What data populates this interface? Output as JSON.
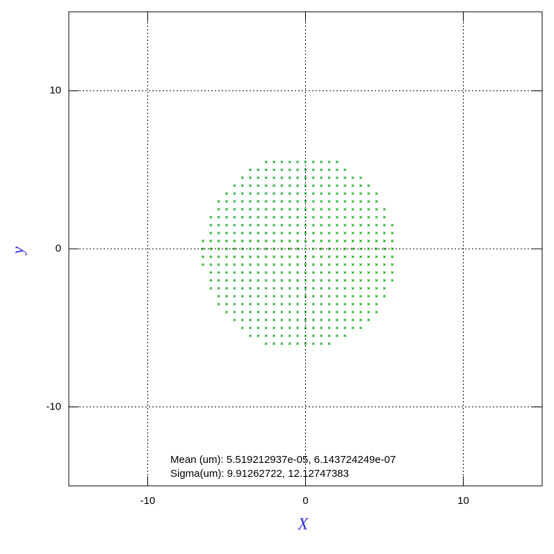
{
  "chart_data": {
    "type": "scatter",
    "xlabel": "X",
    "ylabel": "y",
    "xlim": [
      -15,
      15
    ],
    "ylim": [
      -15,
      15
    ],
    "xticks": [
      -10,
      0,
      10
    ],
    "yticks": [
      -10,
      0,
      10
    ],
    "grid": true,
    "color": "#00a000",
    "annotations": [
      "Mean (um): 5.519212937e-05, 6.143724249e-07",
      "Sigma(um): 9.91262722, 12.12747383"
    ],
    "rows": [
      {
        "y": 5.5,
        "x": [
          -2.5,
          -2,
          -1.5,
          -1,
          -0.5,
          0,
          0.5,
          1,
          1.5,
          2
        ]
      },
      {
        "y": 5,
        "x": [
          -3.5,
          -3,
          -2.5,
          -2,
          -1.5,
          -1,
          -0.5,
          0,
          0.5,
          1,
          1.5,
          2,
          2.5
        ]
      },
      {
        "y": 4.5,
        "x": [
          -4,
          -3.5,
          -3,
          -2.5,
          -2,
          -1.5,
          -1,
          -0.5,
          0,
          0.5,
          1,
          1.5,
          2,
          2.5,
          3,
          3.5
        ]
      },
      {
        "y": 4,
        "x": [
          -4.5,
          -4,
          -3.5,
          -3,
          -2.5,
          -2,
          -1.5,
          -1,
          -0.5,
          0,
          0.5,
          1,
          1.5,
          2,
          2.5,
          3,
          3.5,
          4
        ]
      },
      {
        "y": 3.5,
        "x": [
          -5,
          -4.5,
          -4,
          -3.5,
          -3,
          -2.5,
          -2,
          -1.5,
          -1,
          -0.5,
          0,
          0.5,
          1,
          1.5,
          2,
          2.5,
          3,
          3.5,
          4,
          4.5
        ]
      },
      {
        "y": 3,
        "x": [
          -5.5,
          -5,
          -4.5,
          -4,
          -3.5,
          -3,
          -2.5,
          -2,
          -1.5,
          -1,
          -0.5,
          0,
          0.5,
          1,
          1.5,
          2,
          2.5,
          3,
          3.5,
          4,
          4.5
        ]
      },
      {
        "y": 2.5,
        "x": [
          -5.5,
          -5,
          -4.5,
          -4,
          -3.5,
          -3,
          -2.5,
          -2,
          -1.5,
          -1,
          -0.5,
          0,
          0.5,
          1,
          1.5,
          2,
          2.5,
          3,
          3.5,
          4,
          4.5,
          5
        ]
      },
      {
        "y": 2,
        "x": [
          -6,
          -5.5,
          -5,
          -4.5,
          -4,
          -3.5,
          -3,
          -2.5,
          -2,
          -1.5,
          -1,
          -0.5,
          0,
          0.5,
          1,
          1.5,
          2,
          2.5,
          3,
          3.5,
          4,
          4.5,
          5
        ]
      },
      {
        "y": 1.5,
        "x": [
          -6,
          -5.5,
          -5,
          -4.5,
          -4,
          -3.5,
          -3,
          -2.5,
          -2,
          -1.5,
          -1,
          -0.5,
          0,
          0.5,
          1,
          1.5,
          2,
          2.5,
          3,
          3.5,
          4,
          4.5,
          5,
          5.5
        ]
      },
      {
        "y": 1,
        "x": [
          -6,
          -5.5,
          -5,
          -4.5,
          -4,
          -3.5,
          -3,
          -2.5,
          -2,
          -1.5,
          -1,
          -0.5,
          0,
          0.5,
          1,
          1.5,
          2,
          2.5,
          3,
          3.5,
          4,
          4.5,
          5,
          5.5
        ]
      },
      {
        "y": 0.5,
        "x": [
          -6.5,
          -6,
          -5.5,
          -5,
          -4.5,
          -4,
          -3.5,
          -3,
          -2.5,
          -2,
          -1.5,
          -1,
          -0.5,
          0,
          0.5,
          1,
          1.5,
          2,
          2.5,
          3,
          3.5,
          4,
          4.5,
          5,
          5.5
        ]
      },
      {
        "y": 0,
        "x": [
          -6.5,
          -6,
          -5.5,
          -5,
          -4.5,
          -4,
          -3.5,
          -3,
          -2.5,
          -2,
          -1.5,
          -1,
          -0.5,
          0,
          0.5,
          1,
          1.5,
          2,
          2.5,
          3,
          3.5,
          4,
          4.5,
          5,
          5.5
        ]
      },
      {
        "y": -0.5,
        "x": [
          -6.5,
          -6,
          -5.5,
          -5,
          -4.5,
          -4,
          -3.5,
          -3,
          -2.5,
          -2,
          -1.5,
          -1,
          -0.5,
          0,
          0.5,
          1,
          1.5,
          2,
          2.5,
          3,
          3.5,
          4,
          4.5,
          5,
          5.5
        ]
      },
      {
        "y": -1,
        "x": [
          -6.5,
          -6,
          -5.5,
          -5,
          -4.5,
          -4,
          -3.5,
          -3,
          -2.5,
          -2,
          -1.5,
          -1,
          -0.5,
          0,
          0.5,
          1,
          1.5,
          2,
          2.5,
          3,
          3.5,
          4,
          4.5,
          5,
          5.5
        ]
      },
      {
        "y": -1.5,
        "x": [
          -6,
          -5.5,
          -5,
          -4.5,
          -4,
          -3.5,
          -3,
          -2.5,
          -2,
          -1.5,
          -1,
          -0.5,
          0,
          0.5,
          1,
          1.5,
          2,
          2.5,
          3,
          3.5,
          4,
          4.5,
          5,
          5.5
        ]
      },
      {
        "y": -2,
        "x": [
          -6,
          -5.5,
          -5,
          -4.5,
          -4,
          -3.5,
          -3,
          -2.5,
          -2,
          -1.5,
          -1,
          -0.5,
          0,
          0.5,
          1,
          1.5,
          2,
          2.5,
          3,
          3.5,
          4,
          4.5,
          5,
          5.5
        ]
      },
      {
        "y": -2.5,
        "x": [
          -6,
          -5.5,
          -5,
          -4.5,
          -4,
          -3.5,
          -3,
          -2.5,
          -2,
          -1.5,
          -1,
          -0.5,
          0,
          0.5,
          1,
          1.5,
          2,
          2.5,
          3,
          3.5,
          4,
          4.5,
          5
        ]
      },
      {
        "y": -3,
        "x": [
          -5.5,
          -5,
          -4.5,
          -4,
          -3.5,
          -3,
          -2.5,
          -2,
          -1.5,
          -1,
          -0.5,
          0,
          0.5,
          1,
          1.5,
          2,
          2.5,
          3,
          3.5,
          4,
          4.5,
          5
        ]
      },
      {
        "y": -3.5,
        "x": [
          -5.5,
          -5,
          -4.5,
          -4,
          -3.5,
          -3,
          -2.5,
          -2,
          -1.5,
          -1,
          -0.5,
          0,
          0.5,
          1,
          1.5,
          2,
          2.5,
          3,
          3.5,
          4,
          4.5
        ]
      },
      {
        "y": -4,
        "x": [
          -5,
          -4.5,
          -4,
          -3.5,
          -3,
          -2.5,
          -2,
          -1.5,
          -1,
          -0.5,
          0,
          0.5,
          1,
          1.5,
          2,
          2.5,
          3,
          3.5,
          4,
          4.5
        ]
      },
      {
        "y": -4.5,
        "x": [
          -4.5,
          -4,
          -3.5,
          -3,
          -2.5,
          -2,
          -1.5,
          -1,
          -0.5,
          0,
          0.5,
          1,
          1.5,
          2,
          2.5,
          3,
          3.5,
          4
        ]
      },
      {
        "y": -5,
        "x": [
          -4,
          -3.5,
          -3,
          -2.5,
          -2,
          -1.5,
          -1,
          -0.5,
          0,
          0.5,
          1,
          1.5,
          2,
          2.5,
          3,
          3.5
        ]
      },
      {
        "y": -5.5,
        "x": [
          -3.5,
          -3,
          -2.5,
          -2,
          -1.5,
          -1,
          -0.5,
          0,
          0.5,
          1,
          1.5,
          2,
          2.5
        ]
      },
      {
        "y": -6,
        "x": [
          -2.5,
          -2,
          -1.5,
          -1,
          -0.5,
          0,
          0.5,
          1,
          1.5
        ]
      }
    ]
  }
}
